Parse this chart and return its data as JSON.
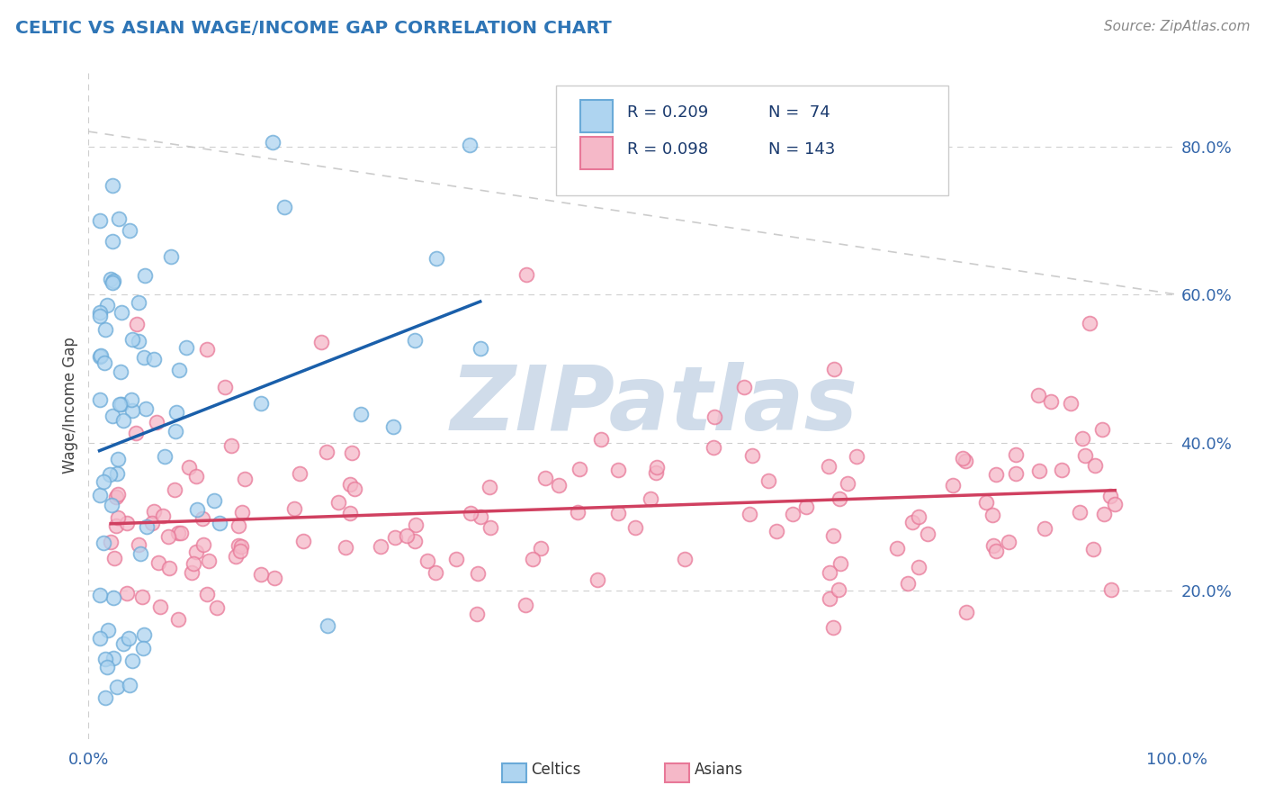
{
  "title": "CELTIC VS ASIAN WAGE/INCOME GAP CORRELATION CHART",
  "source": "Source: ZipAtlas.com",
  "ylabel": "Wage/Income Gap",
  "right_yticks": [
    20.0,
    40.0,
    60.0,
    80.0
  ],
  "title_color": "#2e75b6",
  "source_color": "#888888",
  "background_color": "#ffffff",
  "watermark_text": "ZIPatlas",
  "watermark_color": "#d0dcea",
  "celtics_face": "#aed4f0",
  "celtics_edge": "#6aaad8",
  "asians_face": "#f5b8c8",
  "asians_edge": "#e87898",
  "regression_celtic_color": "#1a5faa",
  "regression_asian_color": "#d04060",
  "grid_color": "#bbbbbb",
  "dashed_line_color": "#bbbbbb",
  "legend_text_color": "#1a3a6e",
  "xlim": [
    0.0,
    1.0
  ],
  "ylim": [
    0.0,
    0.9
  ]
}
